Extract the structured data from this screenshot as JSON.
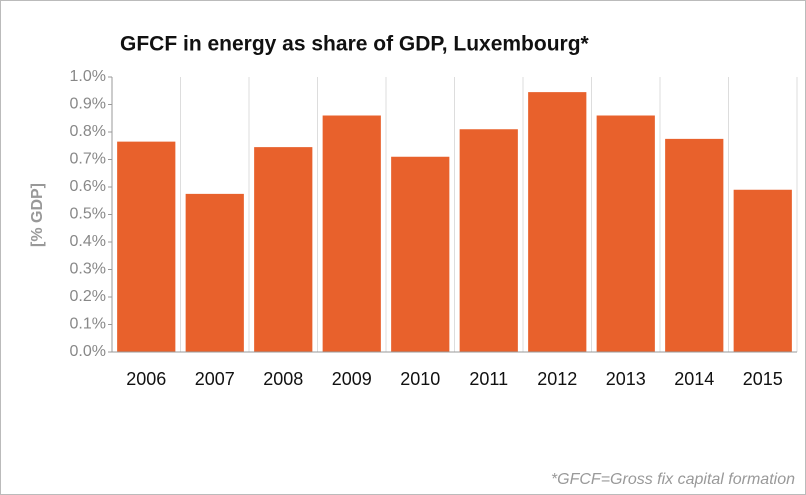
{
  "chart_data": {
    "type": "bar",
    "title": "GFCF in energy as share of GDP, Luxembourg*",
    "y_label": "[% GDP]",
    "footnote": "*GFCF=Gross fix capital formation",
    "categories": [
      "2006",
      "2007",
      "2008",
      "2009",
      "2010",
      "2011",
      "2012",
      "2013",
      "2014",
      "2015"
    ],
    "values": [
      0.765,
      0.575,
      0.745,
      0.86,
      0.71,
      0.81,
      0.945,
      0.86,
      0.775,
      0.59
    ],
    "color": "#e8612c",
    "ylim": [
      0,
      1.0
    ],
    "yticks": [
      {
        "value": 0,
        "label": "0.0%"
      },
      {
        "value": 0.1,
        "label": "0.1%"
      },
      {
        "value": 0.2,
        "label": "0.2%"
      },
      {
        "value": 0.3,
        "label": "0.3%"
      },
      {
        "value": 0.4,
        "label": "0.4%"
      },
      {
        "value": 0.5,
        "label": "0.5%"
      },
      {
        "value": 0.6,
        "label": "0.6%"
      },
      {
        "value": 0.7,
        "label": "0.7%"
      },
      {
        "value": 0.8,
        "label": "0.8%"
      },
      {
        "value": 0.9,
        "label": "0.9%"
      },
      {
        "value": 1.0,
        "label": "1.0%"
      }
    ]
  }
}
